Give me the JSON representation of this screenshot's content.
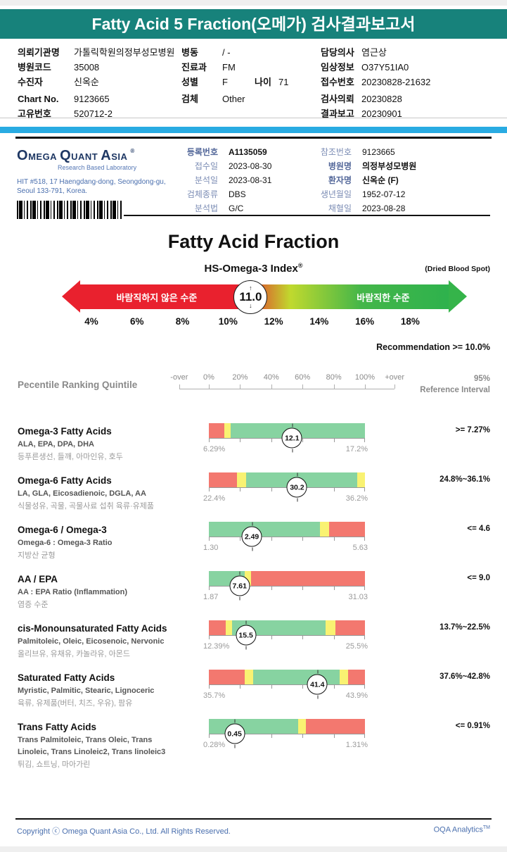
{
  "header": {
    "title": "Fatty Acid 5 Fraction(오메가) 검사결과보고서"
  },
  "patient": {
    "columns": [
      {
        "rows": [
          {
            "label": "의뢰기관명",
            "value": "가톨릭학원의정부성모병원"
          },
          {
            "label": "병원코드",
            "value": "35008"
          },
          {
            "label": "수진자",
            "value": "신옥순"
          },
          {
            "label": "Chart No.",
            "value": "9123665",
            "gap": true
          },
          {
            "label": "고유번호",
            "value": "520712-2"
          }
        ]
      },
      {
        "rows": [
          {
            "label": "병동",
            "value": "/ -"
          },
          {
            "label": "진료과",
            "value": "FM"
          },
          {
            "label": "성별",
            "value": "F",
            "label2": "나이",
            "value2": "71"
          },
          {
            "label": "검체",
            "value": "Other",
            "gap": true
          }
        ]
      },
      {
        "rows": [
          {
            "label": "담당의사",
            "value": "염근상"
          },
          {
            "label": "임상정보",
            "value": "O37Y51IA0"
          },
          {
            "label": "접수번호",
            "value": "20230828-21632"
          },
          {
            "label": "검사의뢰",
            "value": "20230828",
            "gap": true
          },
          {
            "label": "결과보고",
            "value": "20230901"
          }
        ]
      }
    ]
  },
  "lab": {
    "logo_words": [
      "Omega",
      "Quant",
      "Asia"
    ],
    "logo_reg": "®",
    "tagline": "Research Based Laboratory",
    "address_line1": "HIT #518, 17 Haengdang-dong, Seongdong-gu,",
    "address_line2": "Seoul 133-791, Korea.",
    "info_left": [
      {
        "label": "등록번호",
        "value": "A1135059",
        "bold": true
      },
      {
        "label": "접수일",
        "value": "2023-08-30"
      },
      {
        "label": "분석일",
        "value": "2023-08-31"
      },
      {
        "label": "검체종류",
        "value": "DBS"
      },
      {
        "label": "분석법",
        "value": "G/C"
      }
    ],
    "info_right": [
      {
        "label": "참조번호",
        "value": "9123665"
      },
      {
        "label": "병원명",
        "value": "의정부성모병원",
        "bold": true
      },
      {
        "label": "환자명",
        "value": "신옥순 (F)",
        "bold": true
      },
      {
        "label": "생년월일",
        "value": "1952-07-12"
      },
      {
        "label": "채혈일",
        "value": "2023-08-28"
      }
    ]
  },
  "report": {
    "title": "Fatty Acid Fraction",
    "index_title": "HS-Omega-3 Index",
    "index_reg": "®",
    "sample_type": "(Dried Blood Spot)",
    "recommendation": "Recommendation  >=  10.0%"
  },
  "quintile": {
    "heading": "Pecentile Ranking Quintile",
    "ref_line1": "95%",
    "ref_line2": "Reference Interval"
  },
  "footer": {
    "copyright": "Copyright ⓒ Omega Quant Asia Co., Ltd.  All Rights Reserved.",
    "brand": "OQA Analytics",
    "brand_sup": "TM"
  },
  "chart_data": {
    "type": "bar",
    "gauge": {
      "title": "HS-Omega-3 Index",
      "value": "11.0",
      "value_numeric": 11.0,
      "marker_pos_pct": 46.6,
      "left_zone_label": "바람직하지 않은 수준",
      "right_zone_label": "바람직한 수준",
      "ticks": [
        "4%",
        "6%",
        "8%",
        "10%",
        "12%",
        "14%",
        "16%",
        "18%"
      ],
      "recommendation": ">= 10.0%"
    },
    "scale": {
      "labels": [
        "-over",
        "0%",
        "20%",
        "40%",
        "60%",
        "80%",
        "100%",
        "+over"
      ],
      "positions_pct": [
        -19,
        0,
        20,
        40,
        60,
        80,
        100,
        119
      ]
    },
    "segment_colors": {
      "red": "#F3786F",
      "yellow": "#F9F272",
      "green": "#87D3A1"
    },
    "rows": [
      {
        "name": "Omega-3 Fatty Acids",
        "subtitles": [
          "ALA, EPA, DPA, DHA"
        ],
        "korean": "등푸른생선, 들깨, 아마인유, 호두",
        "value": "12.1",
        "marker_pos_pct": 53.3,
        "range_low": "6.29%",
        "range_high": "17.2%",
        "reference": ">= 7.27%",
        "segments": [
          {
            "color": "red",
            "pct": 10
          },
          {
            "color": "yellow",
            "pct": 4
          },
          {
            "color": "green",
            "pct": 86
          }
        ]
      },
      {
        "name": "Omega-6 Fatty Acids",
        "subtitles": [
          "LA, GLA, Eicosadienoic, DGLA, AA"
        ],
        "korean": "식물성유, 곡물, 곡물사료 섭취 육류·유제품",
        "value": "30.2",
        "marker_pos_pct": 56.5,
        "range_low": "22.4%",
        "range_high": "36.2%",
        "reference": "24.8%~36.1%",
        "segments": [
          {
            "color": "red",
            "pct": 18
          },
          {
            "color": "yellow",
            "pct": 6
          },
          {
            "color": "green",
            "pct": 71
          },
          {
            "color": "yellow",
            "pct": 5
          }
        ]
      },
      {
        "name": "Omega-6 / Omega-3",
        "subtitles": [
          "Omega-6 : Omega-3 Ratio"
        ],
        "korean": "지방산 균형",
        "value": "2.49",
        "marker_pos_pct": 27.5,
        "range_low": "1.30",
        "range_high": "5.63",
        "reference": "<= 4.6",
        "segments": [
          {
            "color": "green",
            "pct": 71
          },
          {
            "color": "yellow",
            "pct": 6
          },
          {
            "color": "red",
            "pct": 23
          }
        ]
      },
      {
        "name": "AA / EPA",
        "subtitles": [
          "AA : EPA Ratio (Inflammation)"
        ],
        "korean": "염증 수준",
        "value": "7.61",
        "marker_pos_pct": 19.7,
        "range_low": "1.87",
        "range_high": "31.03",
        "reference": "<= 9.0",
        "segments": [
          {
            "color": "green",
            "pct": 23
          },
          {
            "color": "yellow",
            "pct": 4
          },
          {
            "color": "red",
            "pct": 73
          }
        ]
      },
      {
        "name": "cis-Monounsaturated Fatty Acids",
        "subtitles": [
          "Palmitoleic, Oleic, Eicosenoic, Nervonic"
        ],
        "korean": "올리브유, 유채유, 카놀라유, 아몬드",
        "value": "15.5",
        "marker_pos_pct": 23.7,
        "range_low": "12.39%",
        "range_high": "25.5%",
        "reference": "13.7%~22.5%",
        "segments": [
          {
            "color": "red",
            "pct": 11
          },
          {
            "color": "yellow",
            "pct": 4
          },
          {
            "color": "green",
            "pct": 60
          },
          {
            "color": "yellow",
            "pct": 6
          },
          {
            "color": "red",
            "pct": 19
          }
        ]
      },
      {
        "name": "Saturated Fatty Acids",
        "subtitles": [
          "Myristic, Palmitic, Stearic, Lignoceric"
        ],
        "korean": "육류, 유제품(버터, 치즈, 우유), 팜유",
        "value": "41.4",
        "marker_pos_pct": 69.5,
        "range_low": "35.7%",
        "range_high": "43.9%",
        "reference": "37.6%~42.8%",
        "segments": [
          {
            "color": "red",
            "pct": 23
          },
          {
            "color": "yellow",
            "pct": 5.5
          },
          {
            "color": "green",
            "pct": 55.5
          },
          {
            "color": "yellow",
            "pct": 5
          },
          {
            "color": "red",
            "pct": 11
          }
        ]
      },
      {
        "name": "Trans Fatty Acids",
        "subtitles": [
          "Trans Palmitoleic, Trans Oleic, Trans",
          "Linoleic, Trans Linoleic2, Trans linoleic3"
        ],
        "korean": "튀김, 쇼트닝, 마아가린",
        "value": "0.45",
        "marker_pos_pct": 16.5,
        "range_low": "0.28%",
        "range_high": "1.31%",
        "reference": "<= 0.91%",
        "segments": [
          {
            "color": "green",
            "pct": 57
          },
          {
            "color": "yellow",
            "pct": 5
          },
          {
            "color": "red",
            "pct": 38
          }
        ],
        "tall": true
      }
    ]
  }
}
